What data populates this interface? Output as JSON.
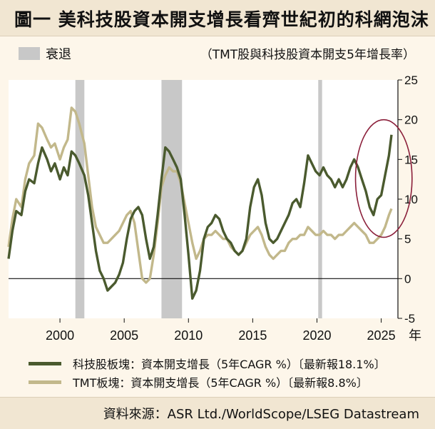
{
  "header": {
    "title": "圖一 美科技股資本開支增長看齊世紀初的科網泡沫",
    "recession_label": "衰退",
    "subtitle": "（TMT股與科技股資本開支5年增長率）"
  },
  "footer": {
    "source": "資料來源：ASR Ltd./WorldScope/LSEG Datastream"
  },
  "colors": {
    "tech": "#4a5a2e",
    "tmt": "#c2b88b",
    "recession": "#c8c8c8",
    "highlight": "#8b1f3a"
  },
  "chart_data": {
    "type": "line",
    "title": "",
    "x_unit_label": "年",
    "xlim": [
      1996,
      2026.3
    ],
    "ylim": [
      -5,
      25
    ],
    "x_ticks": [
      2000,
      2005,
      2010,
      2015,
      2020,
      2025
    ],
    "y_ticks": [
      25,
      20,
      15,
      10,
      5,
      0,
      -5
    ],
    "y_axis_position": "right",
    "recessions": [
      [
        2001.2,
        2001.9
      ],
      [
        2007.9,
        2009.5
      ],
      [
        2020.1,
        2020.4
      ]
    ],
    "highlight_ellipse": {
      "x_center": 2025.2,
      "y_center": 12.6,
      "x_radius": 2.2,
      "y_radius": 7.4
    },
    "series": [
      {
        "name": "科技股板塊：資本開支增長（5年CAGR %）〔最新報18.1%〕",
        "latest": 18.1,
        "points": [
          [
            1996.0,
            2.5
          ],
          [
            1996.3,
            6.0
          ],
          [
            1996.6,
            8.5
          ],
          [
            1997.0,
            8.0
          ],
          [
            1997.3,
            11.0
          ],
          [
            1997.6,
            12.5
          ],
          [
            1998.0,
            12.0
          ],
          [
            1998.3,
            14.5
          ],
          [
            1998.6,
            16.5
          ],
          [
            1999.0,
            15.0
          ],
          [
            1999.3,
            13.5
          ],
          [
            1999.6,
            14.5
          ],
          [
            2000.0,
            12.5
          ],
          [
            2000.3,
            14.0
          ],
          [
            2000.6,
            13.0
          ],
          [
            2000.9,
            16.0
          ],
          [
            2001.2,
            15.5
          ],
          [
            2001.5,
            14.5
          ],
          [
            2001.9,
            13.0
          ],
          [
            2002.2,
            10.5
          ],
          [
            2002.5,
            7.0
          ],
          [
            2002.8,
            3.5
          ],
          [
            2003.1,
            1.0
          ],
          [
            2003.4,
            0.0
          ],
          [
            2003.7,
            -1.5
          ],
          [
            2004.0,
            -1.0
          ],
          [
            2004.3,
            -0.5
          ],
          [
            2004.6,
            0.5
          ],
          [
            2004.9,
            2.0
          ],
          [
            2005.2,
            5.0
          ],
          [
            2005.5,
            7.5
          ],
          [
            2005.8,
            8.5
          ],
          [
            2006.1,
            9.0
          ],
          [
            2006.4,
            8.0
          ],
          [
            2006.7,
            5.0
          ],
          [
            2007.0,
            2.5
          ],
          [
            2007.3,
            4.0
          ],
          [
            2007.6,
            8.0
          ],
          [
            2007.9,
            12.5
          ],
          [
            2008.2,
            16.5
          ],
          [
            2008.5,
            16.0
          ],
          [
            2008.8,
            15.0
          ],
          [
            2009.1,
            14.0
          ],
          [
            2009.4,
            12.5
          ],
          [
            2009.7,
            8.0
          ],
          [
            2010.0,
            3.0
          ],
          [
            2010.3,
            -2.5
          ],
          [
            2010.6,
            -1.5
          ],
          [
            2010.9,
            1.0
          ],
          [
            2011.2,
            5.0
          ],
          [
            2011.5,
            6.5
          ],
          [
            2011.8,
            7.0
          ],
          [
            2012.1,
            8.0
          ],
          [
            2012.4,
            7.5
          ],
          [
            2012.7,
            6.0
          ],
          [
            2013.0,
            5.0
          ],
          [
            2013.3,
            4.5
          ],
          [
            2013.6,
            3.5
          ],
          [
            2013.9,
            3.0
          ],
          [
            2014.2,
            3.5
          ],
          [
            2014.5,
            5.0
          ],
          [
            2014.8,
            9.0
          ],
          [
            2015.1,
            11.5
          ],
          [
            2015.4,
            12.5
          ],
          [
            2015.7,
            10.5
          ],
          [
            2016.0,
            7.0
          ],
          [
            2016.3,
            5.0
          ],
          [
            2016.6,
            4.5
          ],
          [
            2016.9,
            5.0
          ],
          [
            2017.2,
            6.0
          ],
          [
            2017.5,
            7.0
          ],
          [
            2017.8,
            8.0
          ],
          [
            2018.1,
            9.5
          ],
          [
            2018.4,
            10.0
          ],
          [
            2018.7,
            9.0
          ],
          [
            2019.0,
            12.0
          ],
          [
            2019.3,
            15.5
          ],
          [
            2019.6,
            14.5
          ],
          [
            2019.9,
            13.5
          ],
          [
            2020.2,
            13.0
          ],
          [
            2020.5,
            14.0
          ],
          [
            2020.8,
            13.0
          ],
          [
            2021.1,
            12.5
          ],
          [
            2021.4,
            11.5
          ],
          [
            2021.7,
            12.5
          ],
          [
            2022.0,
            11.5
          ],
          [
            2022.3,
            12.5
          ],
          [
            2022.6,
            14.0
          ],
          [
            2022.9,
            15.0
          ],
          [
            2023.2,
            14.0
          ],
          [
            2023.5,
            12.5
          ],
          [
            2023.8,
            11.0
          ],
          [
            2024.1,
            9.0
          ],
          [
            2024.4,
            8.0
          ],
          [
            2024.7,
            10.0
          ],
          [
            2025.0,
            10.5
          ],
          [
            2025.3,
            13.0
          ],
          [
            2025.6,
            15.5
          ],
          [
            2025.8,
            18.1
          ]
        ]
      },
      {
        "name": "TMT板塊：資本開支增長（5年CAGR %）〔最新報8.8%〕",
        "latest": 8.8,
        "points": [
          [
            1996.0,
            4.0
          ],
          [
            1996.3,
            7.5
          ],
          [
            1996.6,
            10.0
          ],
          [
            1997.0,
            9.0
          ],
          [
            1997.3,
            12.5
          ],
          [
            1997.6,
            14.5
          ],
          [
            1998.0,
            15.5
          ],
          [
            1998.3,
            19.5
          ],
          [
            1998.6,
            19.0
          ],
          [
            1999.0,
            17.5
          ],
          [
            1999.3,
            16.5
          ],
          [
            1999.6,
            17.0
          ],
          [
            2000.0,
            15.0
          ],
          [
            2000.3,
            16.5
          ],
          [
            2000.6,
            17.5
          ],
          [
            2000.9,
            21.5
          ],
          [
            2001.2,
            21.0
          ],
          [
            2001.5,
            19.5
          ],
          [
            2001.9,
            17.0
          ],
          [
            2002.2,
            13.0
          ],
          [
            2002.5,
            9.0
          ],
          [
            2002.8,
            6.5
          ],
          [
            2003.1,
            5.5
          ],
          [
            2003.4,
            4.5
          ],
          [
            2003.7,
            4.5
          ],
          [
            2004.0,
            5.0
          ],
          [
            2004.3,
            5.5
          ],
          [
            2004.6,
            6.0
          ],
          [
            2004.9,
            7.0
          ],
          [
            2005.2,
            8.0
          ],
          [
            2005.5,
            8.5
          ],
          [
            2005.8,
            7.0
          ],
          [
            2006.1,
            3.5
          ],
          [
            2006.4,
            0.0
          ],
          [
            2006.7,
            -0.5
          ],
          [
            2007.0,
            0.0
          ],
          [
            2007.3,
            3.0
          ],
          [
            2007.6,
            7.0
          ],
          [
            2007.9,
            11.5
          ],
          [
            2008.2,
            13.0
          ],
          [
            2008.5,
            14.0
          ],
          [
            2008.8,
            13.5
          ],
          [
            2009.1,
            13.5
          ],
          [
            2009.4,
            12.0
          ],
          [
            2009.7,
            9.5
          ],
          [
            2010.0,
            7.0
          ],
          [
            2010.3,
            4.5
          ],
          [
            2010.6,
            2.5
          ],
          [
            2010.9,
            3.5
          ],
          [
            2011.2,
            5.0
          ],
          [
            2011.5,
            5.5
          ],
          [
            2011.8,
            5.5
          ],
          [
            2012.1,
            6.0
          ],
          [
            2012.4,
            5.5
          ],
          [
            2012.7,
            5.0
          ],
          [
            2013.0,
            5.0
          ],
          [
            2013.3,
            4.0
          ],
          [
            2013.6,
            3.5
          ],
          [
            2013.9,
            3.0
          ],
          [
            2014.2,
            3.5
          ],
          [
            2014.5,
            4.5
          ],
          [
            2014.8,
            5.5
          ],
          [
            2015.1,
            6.0
          ],
          [
            2015.4,
            6.5
          ],
          [
            2015.7,
            5.5
          ],
          [
            2016.0,
            4.0
          ],
          [
            2016.3,
            3.0
          ],
          [
            2016.6,
            2.5
          ],
          [
            2016.9,
            3.0
          ],
          [
            2017.2,
            3.5
          ],
          [
            2017.5,
            3.5
          ],
          [
            2017.8,
            4.5
          ],
          [
            2018.1,
            5.0
          ],
          [
            2018.4,
            5.0
          ],
          [
            2018.7,
            5.5
          ],
          [
            2019.0,
            5.5
          ],
          [
            2019.3,
            6.5
          ],
          [
            2019.6,
            6.0
          ],
          [
            2019.9,
            5.5
          ],
          [
            2020.2,
            5.5
          ],
          [
            2020.5,
            6.0
          ],
          [
            2020.8,
            5.5
          ],
          [
            2021.1,
            5.5
          ],
          [
            2021.4,
            5.0
          ],
          [
            2021.7,
            5.5
          ],
          [
            2022.0,
            5.5
          ],
          [
            2022.3,
            6.0
          ],
          [
            2022.6,
            6.5
          ],
          [
            2022.9,
            7.0
          ],
          [
            2023.2,
            6.5
          ],
          [
            2023.5,
            6.0
          ],
          [
            2023.8,
            5.5
          ],
          [
            2024.1,
            4.5
          ],
          [
            2024.4,
            4.5
          ],
          [
            2024.7,
            5.0
          ],
          [
            2025.0,
            5.5
          ],
          [
            2025.3,
            6.5
          ],
          [
            2025.6,
            8.0
          ],
          [
            2025.8,
            8.8
          ]
        ]
      }
    ]
  }
}
